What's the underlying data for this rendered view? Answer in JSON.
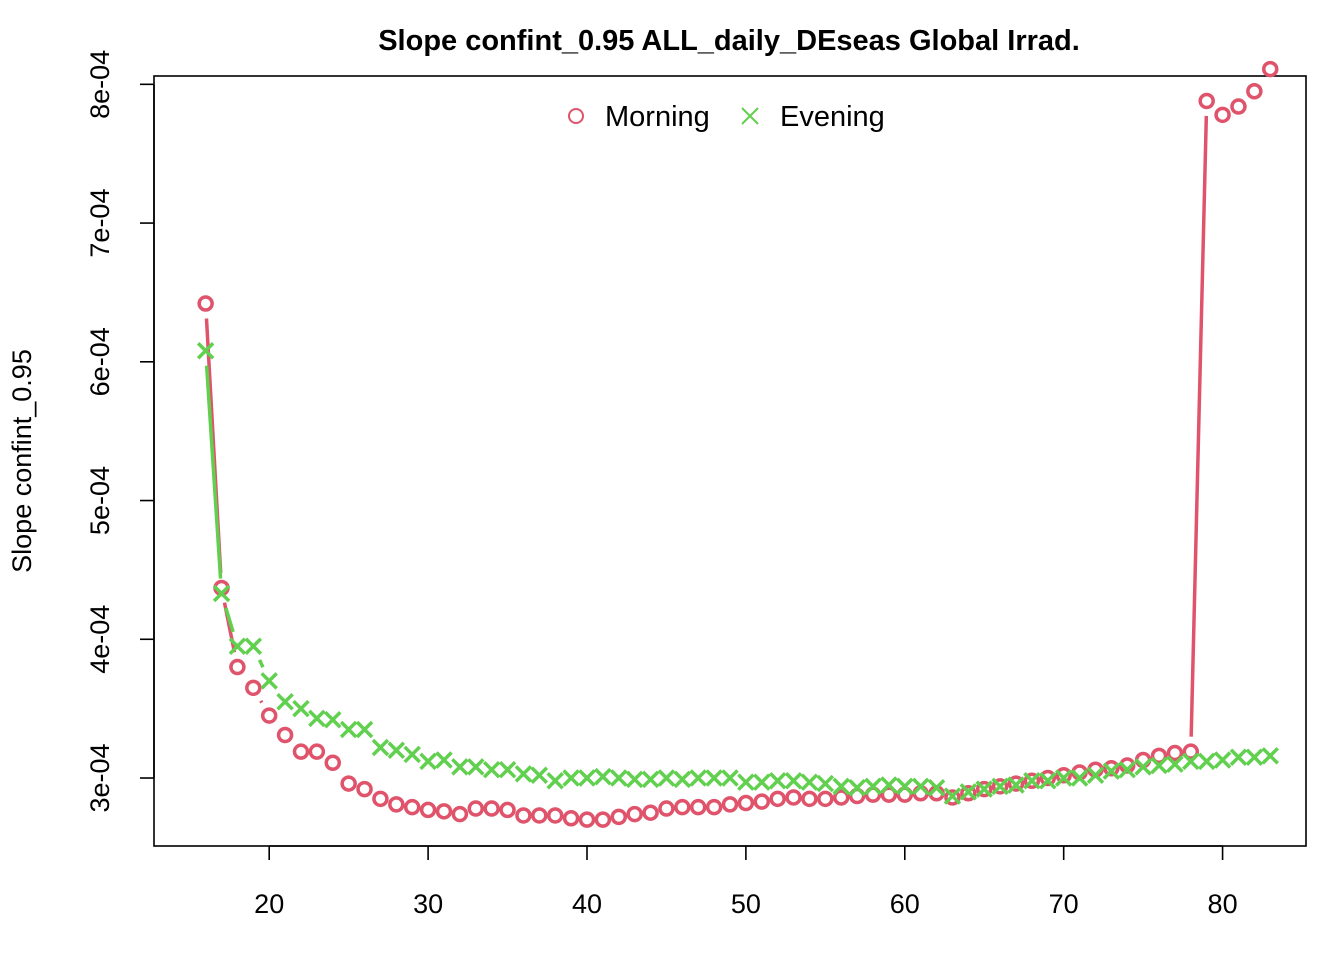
{
  "chart_data": {
    "type": "line",
    "title": "Slope confint_0.95 ALL_daily_DEseas Global Irrad.",
    "xlabel": "",
    "ylabel": "Slope confint_0.95",
    "xlim": [
      12.75,
      85.25
    ],
    "ylim": [
      0.000251,
      0.000806
    ],
    "x_ticks": [
      20,
      30,
      40,
      50,
      60,
      70,
      80
    ],
    "x_tick_labels": [
      "20",
      "30",
      "40",
      "50",
      "60",
      "70",
      "80"
    ],
    "y_ticks": [
      0.0003,
      0.0004,
      0.0005,
      0.0006,
      0.0007,
      0.0008
    ],
    "y_tick_labels": [
      "3e-04",
      "4e-04",
      "5e-04",
      "6e-04",
      "7e-04",
      "8e-04"
    ],
    "grid": false,
    "legend_position": "top",
    "x": [
      16,
      17,
      18,
      19,
      20,
      21,
      22,
      23,
      24,
      25,
      26,
      27,
      28,
      29,
      30,
      31,
      32,
      33,
      34,
      35,
      36,
      37,
      38,
      39,
      40,
      41,
      42,
      43,
      44,
      45,
      46,
      47,
      48,
      49,
      50,
      51,
      52,
      53,
      54,
      55,
      56,
      57,
      58,
      59,
      60,
      61,
      62,
      63,
      64,
      65,
      66,
      67,
      68,
      69,
      70,
      71,
      72,
      73,
      74,
      75,
      76,
      77,
      78,
      79,
      80,
      81,
      82,
      83
    ],
    "series": [
      {
        "name": "Morning",
        "color": "#DF536B",
        "marker": "circle",
        "values": [
          0.000642,
          0.000437,
          0.00038,
          0.000365,
          0.000345,
          0.000331,
          0.000319,
          0.000319,
          0.000311,
          0.000296,
          0.000292,
          0.000285,
          0.000281,
          0.000279,
          0.000277,
          0.000276,
          0.000274,
          0.000278,
          0.000278,
          0.000277,
          0.000273,
          0.000273,
          0.000273,
          0.000271,
          0.00027,
          0.00027,
          0.000272,
          0.000274,
          0.000275,
          0.000278,
          0.000279,
          0.000279,
          0.000279,
          0.000281,
          0.000282,
          0.000283,
          0.000285,
          0.000286,
          0.000285,
          0.000285,
          0.000286,
          0.000287,
          0.000288,
          0.000288,
          0.000288,
          0.000289,
          0.000289,
          0.000286,
          0.000289,
          0.000292,
          0.000294,
          0.000296,
          0.000298,
          0.0003,
          0.000302,
          0.000304,
          0.000306,
          0.000307,
          0.000309,
          0.000313,
          0.000316,
          0.000318,
          0.000319,
          0.000788,
          0.000778,
          0.000784,
          0.000795,
          0.000811
        ]
      },
      {
        "name": "Evening",
        "color": "#61D04F",
        "marker": "cross",
        "values": [
          0.000608,
          0.000433,
          0.000395,
          0.000395,
          0.00037,
          0.000355,
          0.00035,
          0.000343,
          0.000342,
          0.000335,
          0.000335,
          0.000322,
          0.00032,
          0.000317,
          0.000312,
          0.000313,
          0.000308,
          0.000308,
          0.000306,
          0.000306,
          0.000303,
          0.000302,
          0.000298,
          0.0003,
          0.0003,
          0.000301,
          0.0003,
          0.000299,
          0.000299,
          0.0003,
          0.000299,
          0.0003,
          0.0003,
          0.0003,
          0.000297,
          0.000297,
          0.000298,
          0.000298,
          0.000297,
          0.000296,
          0.000294,
          0.000293,
          0.000294,
          0.000295,
          0.000294,
          0.000294,
          0.000293,
          0.000287,
          0.00029,
          0.000292,
          0.000294,
          0.000295,
          0.000298,
          0.000298,
          0.0003,
          0.0003,
          0.000302,
          0.000305,
          0.000306,
          0.000308,
          0.000309,
          0.00031,
          0.000312,
          0.000312,
          0.000313,
          0.000315,
          0.000315,
          0.000316
        ]
      }
    ]
  }
}
